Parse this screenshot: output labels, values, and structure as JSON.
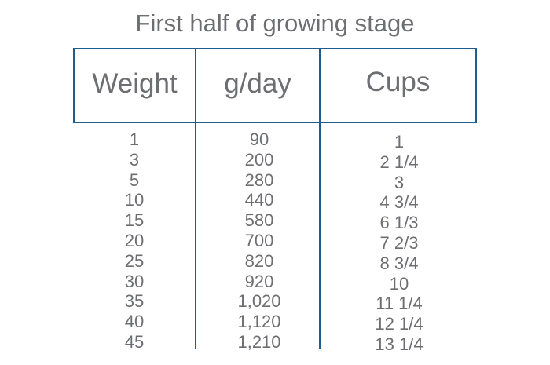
{
  "title": "First half of growing stage",
  "columns": {
    "weight": "Weight",
    "grams_per_day": "g/day",
    "cups": "Cups"
  },
  "rows": [
    {
      "weight": "1",
      "grams_per_day": "90",
      "cups": "1"
    },
    {
      "weight": "3",
      "grams_per_day": "200",
      "cups": "2 1/4"
    },
    {
      "weight": "5",
      "grams_per_day": "280",
      "cups": "3"
    },
    {
      "weight": "10",
      "grams_per_day": "440",
      "cups": "4 3/4"
    },
    {
      "weight": "15",
      "grams_per_day": "580",
      "cups": "6 1/3"
    },
    {
      "weight": "20",
      "grams_per_day": "700",
      "cups": "7 2/3"
    },
    {
      "weight": "25",
      "grams_per_day": "820",
      "cups": "8 3/4"
    },
    {
      "weight": "30",
      "grams_per_day": "920",
      "cups": "10"
    },
    {
      "weight": "35",
      "grams_per_day": "1,020",
      "cups": "11 1/4"
    },
    {
      "weight": "40",
      "grams_per_day": "1,120",
      "cups": "12 1/4"
    },
    {
      "weight": "45",
      "grams_per_day": "1,210",
      "cups": "13 1/4"
    }
  ],
  "colors": {
    "text": "#6d6e71",
    "rules": "#1f5d8c",
    "background": "#ffffff"
  }
}
